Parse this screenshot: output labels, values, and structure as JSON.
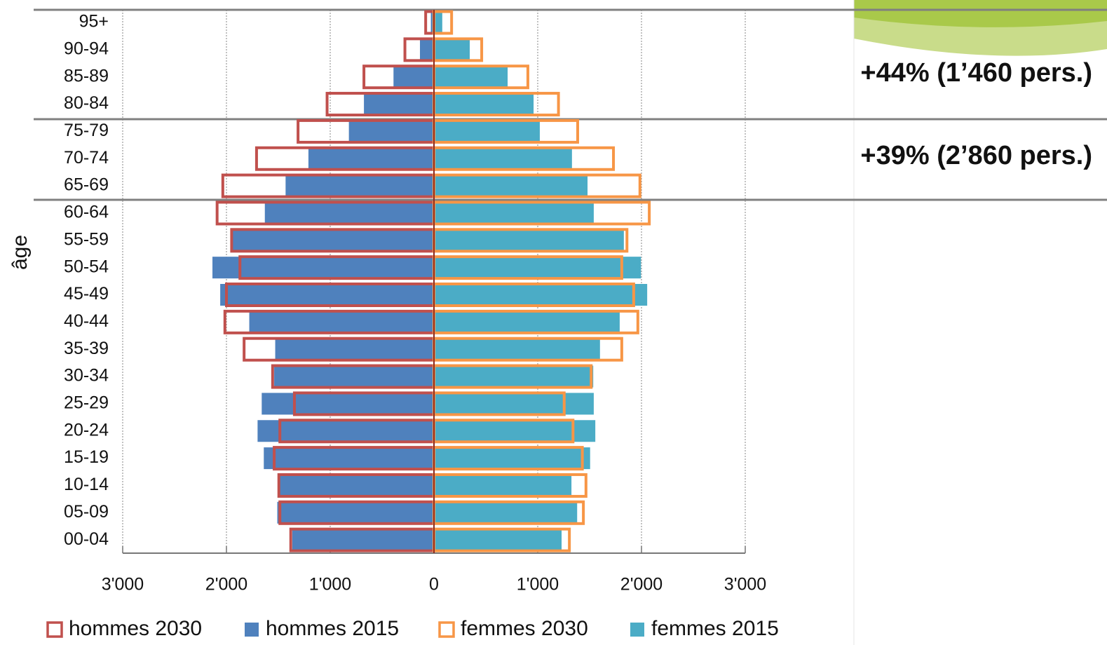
{
  "chart_data": {
    "type": "pyramid",
    "y_label": "âge",
    "categories": [
      "95+",
      "90-94",
      "85-89",
      "80-84",
      "75-79",
      "70-74",
      "65-69",
      "60-64",
      "55-59",
      "50-54",
      "45-49",
      "40-44",
      "35-39",
      "30-34",
      "25-29",
      "20-24",
      "15-19",
      "10-14",
      "05-09",
      "00-04"
    ],
    "series": [
      {
        "name": "hommes 2030",
        "color": "#c0504d",
        "outline": true,
        "values": [
          -80,
          -280,
          -675,
          -1030,
          -1310,
          -1710,
          -2035,
          -2090,
          -1950,
          -1870,
          -2000,
          -2015,
          -1830,
          -1555,
          -1345,
          -1485,
          -1540,
          -1495,
          -1485,
          -1380
        ]
      },
      {
        "name": "hommes 2015",
        "color": "#4f81bd",
        "outline": false,
        "values": [
          -30,
          -135,
          -390,
          -675,
          -820,
          -1210,
          -1430,
          -1630,
          -1940,
          -2135,
          -2060,
          -1780,
          -1530,
          -1540,
          -1660,
          -1700,
          -1640,
          -1490,
          -1510,
          -1365
        ]
      },
      {
        "name": "femmes 2030",
        "color": "#f79646",
        "outline": true,
        "values": [
          170,
          460,
          905,
          1200,
          1385,
          1730,
          1985,
          2075,
          1860,
          1810,
          1925,
          1965,
          1810,
          1515,
          1255,
          1340,
          1430,
          1465,
          1440,
          1305
        ]
      },
      {
        "name": "femmes 2015",
        "color": "#4bacc6",
        "outline": false,
        "values": [
          80,
          345,
          710,
          960,
          1020,
          1330,
          1480,
          1540,
          1830,
          1995,
          2055,
          1790,
          1600,
          1535,
          1540,
          1555,
          1505,
          1325,
          1380,
          1230
        ]
      }
    ],
    "xlim": [
      -3000,
      3000
    ],
    "xticks": [
      {
        "value": -3000,
        "label": "3'000"
      },
      {
        "value": -2000,
        "label": "2'000"
      },
      {
        "value": -1000,
        "label": "1'000"
      },
      0,
      {
        "value": 1000,
        "label": "1'000"
      },
      {
        "value": 2000,
        "label": "2'000"
      },
      {
        "value": 3000,
        "label": "3'000"
      }
    ],
    "grid": true,
    "annotations": [
      "+44% (1’460 pers.)",
      "+39% (2’860 pers.)"
    ]
  }
}
